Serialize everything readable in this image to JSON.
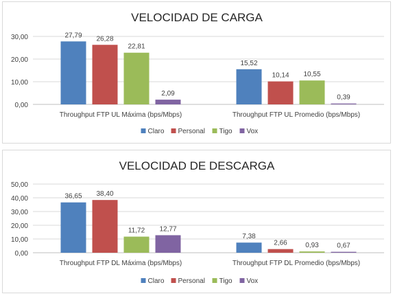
{
  "colors": {
    "Claro": "#4f81bd",
    "Personal": "#c0504d",
    "Tigo": "#9bbb59",
    "Vox": "#8064a2"
  },
  "chart_data": [
    {
      "type": "bar",
      "title": "VELOCIDAD DE CARGA",
      "categories": [
        "Throughput FTP UL Máxima (bps/Mbps)",
        "Throughput FTP UL Promedio (bps/Mbps)"
      ],
      "series": [
        {
          "name": "Claro",
          "values": [
            27.79,
            15.52
          ],
          "labels": [
            "27,79",
            "15,52"
          ]
        },
        {
          "name": "Personal",
          "values": [
            26.28,
            10.14
          ],
          "labels": [
            "26,28",
            "10,14"
          ]
        },
        {
          "name": "Tigo",
          "values": [
            22.81,
            10.55
          ],
          "labels": [
            "22,81",
            "10,55"
          ]
        },
        {
          "name": "Vox",
          "values": [
            2.09,
            0.39
          ],
          "labels": [
            "2,09",
            "0,39"
          ]
        }
      ],
      "ylim": [
        0,
        30
      ],
      "yticks": [
        "0,00",
        "10,00",
        "20,00",
        "30,00"
      ],
      "grid": true,
      "legend": "bottom"
    },
    {
      "type": "bar",
      "title": "VELOCIDAD DE DESCARGA",
      "categories": [
        "Throughput FTP DL Máxima (bps/Mbps)",
        "Throughput FTP DL Promedio (bps/Mbps)"
      ],
      "series": [
        {
          "name": "Claro",
          "values": [
            36.65,
            7.38
          ],
          "labels": [
            "36,65",
            "7,38"
          ]
        },
        {
          "name": "Personal",
          "values": [
            38.4,
            2.66
          ],
          "labels": [
            "38,40",
            "2,66"
          ]
        },
        {
          "name": "Tigo",
          "values": [
            11.72,
            0.93
          ],
          "labels": [
            "11,72",
            "0,93"
          ]
        },
        {
          "name": "Vox",
          "values": [
            12.77,
            0.67
          ],
          "labels": [
            "12,77",
            "0,67"
          ]
        }
      ],
      "ylim": [
        0,
        50
      ],
      "yticks": [
        "0,00",
        "10,00",
        "20,00",
        "30,00",
        "40,00",
        "50,00"
      ],
      "grid": true,
      "legend": "bottom"
    }
  ]
}
